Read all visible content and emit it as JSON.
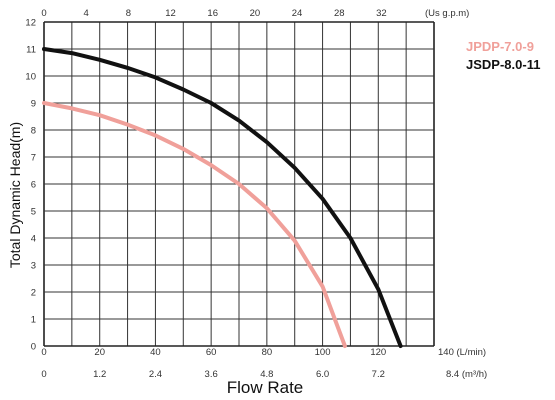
{
  "chart_data": {
    "type": "line",
    "title": "",
    "xlabel": "Flow Rate",
    "ylabel": "Total Dynamic Head(m)",
    "grid": true,
    "legend_position": "top-right",
    "x_primary": {
      "unit_label": "140 (L/min)",
      "range": [
        0,
        140
      ],
      "ticks": [
        "0",
        "20",
        "40",
        "60",
        "80",
        "100",
        "120"
      ]
    },
    "x_secondary": {
      "unit_label": "8.4 (m³/h)",
      "ticks": [
        "0",
        "1.2",
        "2.4",
        "3.6",
        "4.8",
        "6.0",
        "7.2"
      ]
    },
    "x_top": {
      "unit_label": "(Us g.p.m)",
      "ticks": [
        "0",
        "4",
        "8",
        "12",
        "16",
        "20",
        "24",
        "28",
        "32"
      ]
    },
    "y_axis": {
      "range": [
        0,
        12
      ],
      "ticks": [
        "0",
        "1",
        "2",
        "3",
        "4",
        "5",
        "6",
        "7",
        "8",
        "9",
        "10",
        "11",
        "12"
      ]
    },
    "series": [
      {
        "name": "JPDP-7.0-9",
        "color": "#f0a09a",
        "x": [
          0,
          10,
          20,
          30,
          40,
          50,
          60,
          70,
          80,
          90,
          100,
          108
        ],
        "y": [
          9.0,
          8.8,
          8.55,
          8.2,
          7.8,
          7.3,
          6.7,
          6.0,
          5.1,
          3.9,
          2.2,
          0.0
        ]
      },
      {
        "name": "JSDP-8.0-11",
        "color": "#111111",
        "x": [
          0,
          10,
          20,
          30,
          40,
          50,
          60,
          70,
          80,
          90,
          100,
          110,
          120,
          128
        ],
        "y": [
          11.0,
          10.85,
          10.6,
          10.3,
          9.95,
          9.5,
          9.0,
          8.35,
          7.55,
          6.6,
          5.45,
          4.0,
          2.1,
          0.0
        ]
      }
    ]
  }
}
